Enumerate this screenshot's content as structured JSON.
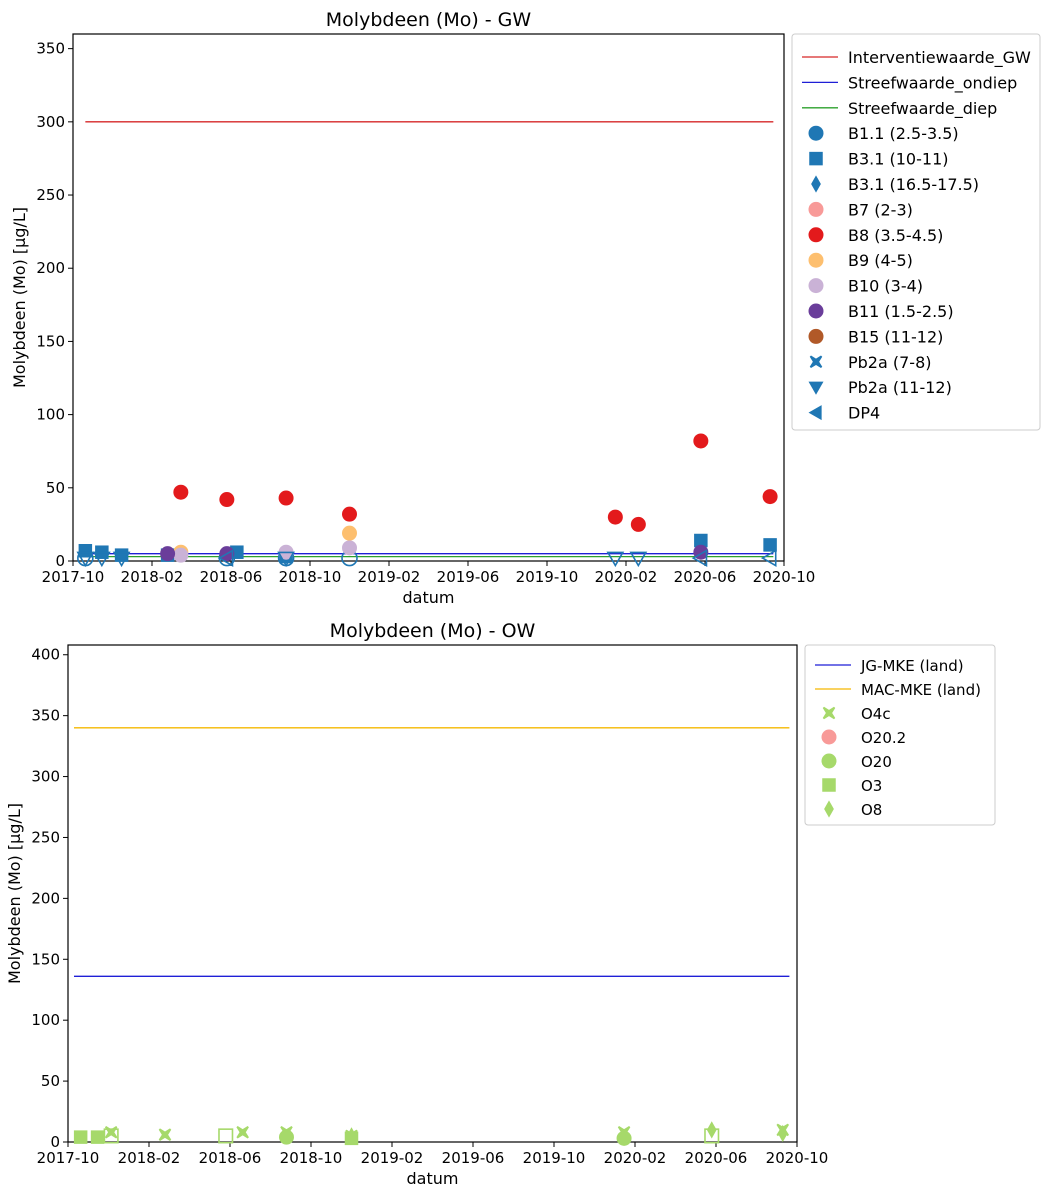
{
  "chart_data": [
    {
      "type": "scatter",
      "title": "Molybdeen (Mo) - GW",
      "xlabel": "datum",
      "ylabel": "Molybdeen (Mo) [µg/L]",
      "xlim": [
        "2017-10-01",
        "2020-10-01"
      ],
      "ylim": [
        0,
        360
      ],
      "xticks": [
        "2017-10",
        "2018-02",
        "2018-06",
        "2018-10",
        "2019-02",
        "2019-06",
        "2019-10",
        "2020-02",
        "2020-06",
        "2020-10"
      ],
      "yticks": [
        0,
        50,
        100,
        150,
        200,
        250,
        300,
        350
      ],
      "legend_position": "outside top-right",
      "lines": [
        {
          "name": "Interventiewaarde_GW",
          "color": "#d62728",
          "y": 300,
          "x": [
            "2017-10-20",
            "2020-09-15"
          ]
        },
        {
          "name": "Streefwaarde_ondiep",
          "color": "#1f1fd6",
          "y": 5,
          "x": [
            "2017-10-20",
            "2020-09-15"
          ]
        },
        {
          "name": "Streefwaarde_diep",
          "color": "#2ca02c",
          "y": 3,
          "x": [
            "2017-10-20",
            "2020-09-15"
          ]
        }
      ],
      "series": [
        {
          "name": "B1.1 (2.5-3.5)",
          "marker": "circle",
          "color": "#1f77b4",
          "points": [
            {
              "x": "2017-10-20",
              "y": 2,
              "open": true
            },
            {
              "x": "2018-05-25",
              "y": 2,
              "open": true
            },
            {
              "x": "2018-08-25",
              "y": 2,
              "open": true
            },
            {
              "x": "2018-12-01",
              "y": 2,
              "open": true
            }
          ]
        },
        {
          "name": "B3.1 (10-11)",
          "marker": "square",
          "color": "#1f77b4",
          "points": [
            {
              "x": "2017-10-20",
              "y": 7
            },
            {
              "x": "2017-11-15",
              "y": 6
            },
            {
              "x": "2017-12-15",
              "y": 4
            },
            {
              "x": "2018-02-25",
              "y": 4
            },
            {
              "x": "2018-06-10",
              "y": 6
            },
            {
              "x": "2018-08-25",
              "y": 3
            },
            {
              "x": "2020-05-25",
              "y": 14
            },
            {
              "x": "2020-09-10",
              "y": 11
            }
          ]
        },
        {
          "name": "B3.1 (16.5-17.5)",
          "marker": "diamond",
          "color": "#1f77b4",
          "points": []
        },
        {
          "name": "B7 (2-3)",
          "marker": "circle",
          "color": "#f89a98",
          "points": []
        },
        {
          "name": "B8 (3.5-4.5)",
          "marker": "circle",
          "color": "#e31a1c",
          "points": [
            {
              "x": "2018-03-15",
              "y": 47
            },
            {
              "x": "2018-05-25",
              "y": 42
            },
            {
              "x": "2018-08-25",
              "y": 43
            },
            {
              "x": "2018-12-01",
              "y": 32
            },
            {
              "x": "2020-01-15",
              "y": 30
            },
            {
              "x": "2020-02-20",
              "y": 25
            },
            {
              "x": "2020-05-25",
              "y": 82
            },
            {
              "x": "2020-09-10",
              "y": 44
            }
          ]
        },
        {
          "name": "B9 (4-5)",
          "marker": "circle",
          "color": "#fdbf6f",
          "points": [
            {
              "x": "2018-03-15",
              "y": 6
            },
            {
              "x": "2018-12-01",
              "y": 19
            }
          ]
        },
        {
          "name": "B10 (3-4)",
          "marker": "circle",
          "color": "#cab2d6",
          "points": [
            {
              "x": "2018-03-15",
              "y": 4
            },
            {
              "x": "2018-08-25",
              "y": 6
            },
            {
              "x": "2018-12-01",
              "y": 9
            }
          ]
        },
        {
          "name": "B11 (1.5-2.5)",
          "marker": "circle",
          "color": "#6a3d9a",
          "points": [
            {
              "x": "2018-02-25",
              "y": 5
            },
            {
              "x": "2018-05-25",
              "y": 5
            },
            {
              "x": "2020-05-25",
              "y": 6
            }
          ]
        },
        {
          "name": "B15 (11-12)",
          "marker": "circle",
          "color": "#b15928",
          "points": []
        },
        {
          "name": "Pb2a (7-8)",
          "marker": "x",
          "color": "#1f77b4",
          "points": []
        },
        {
          "name": "Pb2a (11-12)",
          "marker": "triangle-down",
          "color": "#1f77b4",
          "points": [
            {
              "x": "2017-10-20",
              "y": 2,
              "open": true
            },
            {
              "x": "2017-11-15",
              "y": 2,
              "open": true
            },
            {
              "x": "2017-12-15",
              "y": 2,
              "open": true
            },
            {
              "x": "2018-08-25",
              "y": 2,
              "open": true
            },
            {
              "x": "2020-01-15",
              "y": 2,
              "open": true
            },
            {
              "x": "2020-02-20",
              "y": 2,
              "open": true
            }
          ]
        },
        {
          "name": "DP4",
          "marker": "triangle-left",
          "color": "#1f77b4",
          "points": [
            {
              "x": "2018-05-25",
              "y": 2,
              "open": true
            },
            {
              "x": "2020-05-25",
              "y": 2,
              "open": true
            },
            {
              "x": "2020-09-10",
              "y": 2,
              "open": true
            }
          ]
        }
      ]
    },
    {
      "type": "scatter",
      "title": "Molybdeen (Mo) - OW",
      "xlabel": "datum",
      "ylabel": "Molybdeen (Mo) [µg/L]",
      "xlim": [
        "2017-10-01",
        "2020-10-01"
      ],
      "ylim": [
        0,
        408
      ],
      "xticks": [
        "2017-10",
        "2018-02",
        "2018-06",
        "2018-10",
        "2019-02",
        "2019-06",
        "2019-10",
        "2020-02",
        "2020-06",
        "2020-10"
      ],
      "yticks": [
        0,
        50,
        100,
        150,
        200,
        250,
        300,
        350,
        400
      ],
      "legend_position": "outside top-right",
      "lines": [
        {
          "name": "JG-MKE (land)",
          "color": "#1f1fd6",
          "y": 136,
          "x": [
            "2017-10-10",
            "2020-09-20"
          ]
        },
        {
          "name": "MAC-MKE (land)",
          "color": "#f5b800",
          "y": 340,
          "x": [
            "2017-10-10",
            "2020-09-20"
          ]
        }
      ],
      "series": [
        {
          "name": "O4c",
          "marker": "x",
          "color": "#a6d96a",
          "points": [
            {
              "x": "2017-12-05",
              "y": 8
            },
            {
              "x": "2018-02-25",
              "y": 6
            },
            {
              "x": "2018-06-20",
              "y": 8
            },
            {
              "x": "2018-08-25",
              "y": 8
            },
            {
              "x": "2018-12-01",
              "y": 5
            },
            {
              "x": "2020-01-15",
              "y": 8
            },
            {
              "x": "2020-09-10",
              "y": 10
            }
          ]
        },
        {
          "name": "O20.2",
          "marker": "circle",
          "color": "#f89a98",
          "points": []
        },
        {
          "name": "O20",
          "marker": "circle",
          "color": "#a6d96a",
          "points": [
            {
              "x": "2018-08-25",
              "y": 4
            },
            {
              "x": "2020-01-15",
              "y": 3
            }
          ]
        },
        {
          "name": "O3",
          "marker": "square",
          "color": "#a6d96a",
          "points": [
            {
              "x": "2017-10-20",
              "y": 4
            },
            {
              "x": "2017-11-15",
              "y": 4
            },
            {
              "x": "2018-12-01",
              "y": 3
            },
            {
              "x": "2017-12-05",
              "y": 5,
              "open": true
            },
            {
              "x": "2018-05-25",
              "y": 5,
              "open": true
            },
            {
              "x": "2020-05-25",
              "y": 5,
              "open": true
            }
          ]
        },
        {
          "name": "O8",
          "marker": "diamond",
          "color": "#a6d96a",
          "points": [
            {
              "x": "2018-12-01",
              "y": 5
            },
            {
              "x": "2020-05-25",
              "y": 10
            },
            {
              "x": "2020-09-10",
              "y": 7
            }
          ]
        }
      ]
    }
  ]
}
